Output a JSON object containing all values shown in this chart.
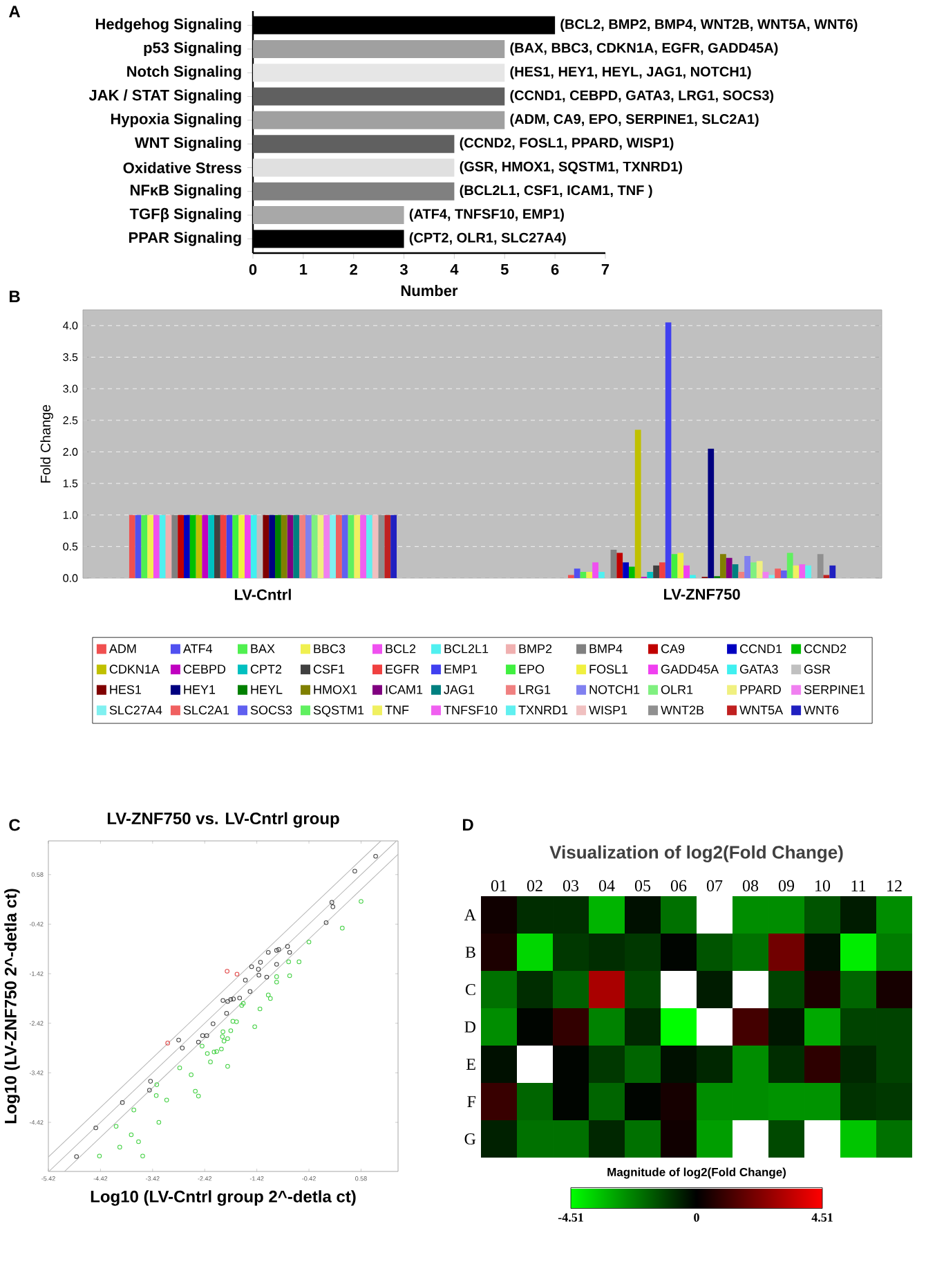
{
  "chart_data": [
    {
      "type": "bar",
      "orientation": "horizontal",
      "annotations": [
        "A"
      ],
      "xlabel": "Number",
      "categories": [
        "Hedgehog Signaling",
        "p53 Signaling",
        "Notch Signaling",
        "JAK / STAT Signaling",
        "Hypoxia Signaling",
        "WNT Signaling",
        "Oxidative Stress",
        "NFκB Signaling",
        "TGFβ Signaling",
        "PPAR Signaling"
      ],
      "values": [
        6,
        5,
        5,
        5,
        5,
        4,
        4,
        4,
        3,
        3
      ],
      "colors": [
        "#000000",
        "#a0a0a0",
        "#e6e6e6",
        "#606060",
        "#a0a0a0",
        "#606060",
        "#e0e0e0",
        "#808080",
        "#a8a8a8",
        "#000000"
      ],
      "value_labels": [
        "(BCL2, BMP2, BMP4, WNT2B, WNT5A, WNT6)",
        "(BAX, BBC3, CDKN1A, EGFR, GADD45A)",
        "(HES1, HEY1, HEYL, JAG1, NOTCH1)",
        "(CCND1, CEBPD, GATA3, LRG1, SOCS3)",
        "(ADM, CA9, EPO, SERPINE1, SLC2A1)",
        "(CCND2, FOSL1, PPARD, WISP1)",
        "(GSR, HMOX1, SQSTM1, TXNRD1)",
        "(BCL2L1, CSF1, ICAM1, TNF )",
        "(ATF4, TNFSF10, EMP1)",
        "(CPT2, OLR1, SLC27A4)"
      ],
      "xlim": [
        0,
        7
      ],
      "xticks": [
        0,
        1,
        2,
        3,
        4,
        5,
        6,
        7
      ]
    },
    {
      "type": "bar",
      "annotations": [
        "B"
      ],
      "ylabel": "Fold Change",
      "categories": [
        "LV-Cntrl",
        "LV-ZNF750"
      ],
      "ylim": [
        0,
        4.25
      ],
      "yticks": [
        {
          "value": 0,
          "label": "0.0"
        },
        {
          "value": 0.5,
          "label": "0.5"
        },
        {
          "value": 1,
          "label": "1.0"
        },
        {
          "value": 1.5,
          "label": "1.5"
        },
        {
          "value": 2,
          "label": "2.0"
        },
        {
          "value": 2.5,
          "label": "2.5"
        },
        {
          "value": 3,
          "label": "3.0"
        },
        {
          "value": 3.5,
          "label": "3.5"
        },
        {
          "value": 4,
          "label": "4.0"
        }
      ],
      "grid": "y",
      "legend": "bottom",
      "series": [
        {
          "name": "ADM",
          "color": "#f05050",
          "values": [
            1.0,
            0.05
          ]
        },
        {
          "name": "ATF4",
          "color": "#5050f0",
          "values": [
            1.0,
            0.15
          ]
        },
        {
          "name": "BAX",
          "color": "#50f050",
          "values": [
            1.0,
            0.1
          ]
        },
        {
          "name": "BBC3",
          "color": "#f0f050",
          "values": [
            1.0,
            0.1
          ]
        },
        {
          "name": "BCL2",
          "color": "#f050f0",
          "values": [
            1.0,
            0.25
          ]
        },
        {
          "name": "BCL2L1",
          "color": "#50f0f0",
          "values": [
            1.0,
            0.1
          ]
        },
        {
          "name": "BMP2",
          "color": "#f0b0b0",
          "values": [
            1.0,
            null
          ]
        },
        {
          "name": "BMP4",
          "color": "#808080",
          "values": [
            1.0,
            0.45
          ]
        },
        {
          "name": "CA9",
          "color": "#c00000",
          "values": [
            1.0,
            0.4
          ]
        },
        {
          "name": "CCND1",
          "color": "#0000c0",
          "values": [
            1.0,
            0.25
          ]
        },
        {
          "name": "CCND2",
          "color": "#00c000",
          "values": [
            1.0,
            0.18
          ]
        },
        {
          "name": "CDKN1A",
          "color": "#c0c000",
          "values": [
            1.0,
            2.35
          ]
        },
        {
          "name": "CEBPD",
          "color": "#c000c0",
          "values": [
            1.0,
            0.02
          ]
        },
        {
          "name": "CPT2",
          "color": "#00c0c0",
          "values": [
            1.0,
            0.1
          ]
        },
        {
          "name": "CSF1",
          "color": "#404040",
          "values": [
            1.0,
            0.2
          ]
        },
        {
          "name": "EGFR",
          "color": "#f04040",
          "values": [
            1.0,
            0.25
          ]
        },
        {
          "name": "EMP1",
          "color": "#4040f0",
          "values": [
            1.0,
            4.05
          ]
        },
        {
          "name": "EPO",
          "color": "#40f040",
          "values": [
            1.0,
            0.38
          ]
        },
        {
          "name": "FOSL1",
          "color": "#f0f040",
          "values": [
            1.0,
            0.4
          ]
        },
        {
          "name": "GADD45A",
          "color": "#f040f0",
          "values": [
            1.0,
            0.2
          ]
        },
        {
          "name": "GATA3",
          "color": "#40f0f0",
          "values": [
            1.0,
            0.05
          ]
        },
        {
          "name": "GSR",
          "color": "#c0c0c0",
          "values": [
            1.0,
            null
          ]
        },
        {
          "name": "HES1",
          "color": "#800000",
          "values": [
            1.0,
            0.02
          ]
        },
        {
          "name": "HEY1",
          "color": "#000080",
          "values": [
            1.0,
            2.05
          ]
        },
        {
          "name": "HEYL",
          "color": "#008000",
          "values": [
            1.0,
            0.03
          ]
        },
        {
          "name": "HMOX1",
          "color": "#808000",
          "values": [
            1.0,
            0.38
          ]
        },
        {
          "name": "ICAM1",
          "color": "#800080",
          "values": [
            1.0,
            0.32
          ]
        },
        {
          "name": "JAG1",
          "color": "#008080",
          "values": [
            1.0,
            0.22
          ]
        },
        {
          "name": "LRG1",
          "color": "#f08080",
          "values": [
            1.0,
            0.1
          ]
        },
        {
          "name": "NOTCH1",
          "color": "#8080f0",
          "values": [
            1.0,
            0.35
          ]
        },
        {
          "name": "OLR1",
          "color": "#80f080",
          "values": [
            1.0,
            0.25
          ]
        },
        {
          "name": "PPARD",
          "color": "#f0f080",
          "values": [
            1.0,
            0.27
          ]
        },
        {
          "name": "SERPINE1",
          "color": "#f080f0",
          "values": [
            1.0,
            0.1
          ]
        },
        {
          "name": "SLC27A4",
          "color": "#80f0f0",
          "values": [
            1.0,
            0.05
          ]
        },
        {
          "name": "SLC2A1",
          "color": "#f06060",
          "values": [
            1.0,
            0.15
          ]
        },
        {
          "name": "SOCS3",
          "color": "#6060f0",
          "values": [
            1.0,
            0.12
          ]
        },
        {
          "name": "SQSTM1",
          "color": "#60f060",
          "values": [
            1.0,
            0.4
          ]
        },
        {
          "name": "TNF",
          "color": "#f0f060",
          "values": [
            1.0,
            0.2
          ]
        },
        {
          "name": "TNFSF10",
          "color": "#f060f0",
          "values": [
            1.0,
            0.22
          ]
        },
        {
          "name": "TXNRD1",
          "color": "#60f0f0",
          "values": [
            1.0,
            0.2
          ]
        },
        {
          "name": "WISP1",
          "color": "#f0c0c0",
          "values": [
            1.0,
            null
          ]
        },
        {
          "name": "WNT2B",
          "color": "#909090",
          "values": [
            1.0,
            0.38
          ]
        },
        {
          "name": "WNT5A",
          "color": "#c02020",
          "values": [
            1.0,
            0.05
          ]
        },
        {
          "name": "WNT6",
          "color": "#2020c0",
          "values": [
            1.0,
            0.2
          ]
        }
      ]
    },
    {
      "type": "scatter",
      "annotations": [
        "C"
      ],
      "title": "LV-ZNF750 vs. LV-Cntrl group",
      "xlabel": "Log10 (LV-Cntrl group 2^-detla ct)",
      "ylabel": "Log10 (LV-ZNF750 2^-detla ct)",
      "xlim": [
        -5.42,
        1.29
      ],
      "ylim": [
        -5.41,
        1.26
      ],
      "xticks": [
        -5.42,
        -4.42,
        -3.42,
        -2.42,
        -1.42,
        -0.42,
        0.58
      ],
      "yticks": [
        -4.42,
        -3.42,
        -2.42,
        -1.42,
        -0.42,
        0.58
      ],
      "marker": "circle",
      "series": [
        {
          "type": "line",
          "marker": "none",
          "color": "#b4b4b4",
          "x": [
            -5.42,
            0.96
          ],
          "values": [
            -5.12,
            1.26
          ]
        },
        {
          "type": "line",
          "marker": "none",
          "color": "#b4b4b4",
          "x": [
            -5.41,
            1.26
          ],
          "values": [
            -5.41,
            1.26
          ]
        },
        {
          "type": "line",
          "marker": "none",
          "color": "#b4b4b4",
          "x": [
            -5.11,
            1.29
          ],
          "values": [
            -5.41,
            0.99
          ]
        },
        {
          "color": "#404040",
          "x": [
            0.86,
            0.46,
            0.02,
            0.04,
            -0.09,
            -0.83,
            -1.0,
            -1.04,
            -1.2,
            -0.79,
            -1.35,
            -1.52,
            -1.04,
            -1.39,
            -1.38,
            -1.23,
            -1.64,
            -1.55,
            -2.07,
            -1.98,
            -1.92,
            -1.87,
            -1.75,
            -2.0,
            -2.26,
            -2.46,
            -2.38,
            -2.54,
            -2.92,
            -2.85,
            -3.46,
            -3.48,
            -4.0,
            -4.51,
            -4.88
          ],
          "values": [
            0.95,
            0.65,
            0.02,
            -0.07,
            -0.39,
            -0.87,
            -0.93,
            -0.95,
            -0.99,
            -0.99,
            -1.19,
            -1.28,
            -1.23,
            -1.33,
            -1.45,
            -1.49,
            -1.55,
            -1.78,
            -1.96,
            -1.98,
            -1.94,
            -1.93,
            -1.91,
            -2.22,
            -2.43,
            -2.67,
            -2.67,
            -2.8,
            -2.76,
            -2.92,
            -3.59,
            -3.77,
            -4.02,
            -4.53,
            -5.11
          ]
        },
        {
          "color": "#e04040",
          "x": [
            -1.99,
            -1.8,
            -3.13
          ],
          "values": [
            -1.37,
            -1.43,
            -2.82
          ]
        },
        {
          "color": "#40d040",
          "x": [
            0.58,
            0.22,
            -0.42,
            -0.61,
            -0.81,
            -1.04,
            -1.04,
            -0.79,
            -1.2,
            -1.16,
            -1.36,
            -1.68,
            -1.71,
            -1.81,
            -1.88,
            -1.92,
            -2.07,
            -1.98,
            -2.08,
            -2.05,
            -1.46,
            -2.1,
            -2.19,
            -2.24,
            -2.37,
            -2.31,
            -2.47,
            -1.98,
            -2.9,
            -2.68,
            -2.6,
            -2.54,
            -3.34,
            -3.35,
            -3.15,
            -3.78,
            -3.3,
            -4.12,
            -3.83,
            -3.69,
            -4.05,
            -4.44,
            -3.61
          ],
          "values": [
            0.04,
            -0.5,
            -0.78,
            -1.18,
            -1.18,
            -1.48,
            -1.59,
            -1.46,
            -1.85,
            -1.92,
            -2.13,
            -2.02,
            -2.06,
            -2.39,
            -2.38,
            -2.57,
            -2.59,
            -2.73,
            -2.69,
            -2.78,
            -2.49,
            -2.94,
            -2.99,
            -3.0,
            -3.03,
            -3.2,
            -2.88,
            -3.29,
            -3.32,
            -3.46,
            -3.79,
            -3.89,
            -3.66,
            -3.88,
            -3.97,
            -4.17,
            -4.42,
            -4.5,
            -4.67,
            -4.81,
            -4.92,
            -5.1,
            -5.1
          ]
        }
      ]
    },
    {
      "type": "heatmap",
      "annotations": [
        "D"
      ],
      "title": "Visualization of log2(Fold Change)",
      "clabel": "Magnitude of log2(Fold Change)",
      "categories": [
        "01",
        "02",
        "03",
        "04",
        "05",
        "06",
        "07",
        "08",
        "09",
        "10",
        "11",
        "12"
      ],
      "y_categories": [
        "A",
        "B",
        "C",
        "D",
        "E",
        "F",
        "G"
      ],
      "clim": [
        -4.51,
        4.51
      ],
      "cticks": [
        -4.51,
        0,
        4.51
      ],
      "cells": [
        [
          0.3,
          -0.8,
          -0.8,
          -3.2,
          -0.3,
          -2.0,
          null,
          -2.5,
          -2.5,
          -1.5,
          -0.5,
          -2.5
        ],
        [
          0.5,
          -3.8,
          -1.0,
          -0.8,
          -1.0,
          -0.1,
          -1.5,
          -2.0,
          2.0,
          -0.3,
          -4.2,
          -2.2
        ],
        [
          -2.0,
          -0.8,
          -1.7,
          3.0,
          -1.3,
          null,
          -0.5,
          null,
          -1.2,
          0.5,
          -1.8,
          0.4
        ],
        [
          -2.5,
          -0.1,
          0.9,
          -2.3,
          -0.7,
          -4.5,
          null,
          1.2,
          -0.4,
          -3.0,
          -1.2,
          -1.2
        ],
        [
          -0.3,
          null,
          -0.1,
          -1.0,
          -1.8,
          -0.3,
          -0.7,
          -2.5,
          -0.8,
          0.8,
          -0.7,
          -1.2
        ],
        [
          1.0,
          -1.8,
          -0.1,
          -1.8,
          -0.1,
          0.4,
          -2.5,
          -2.5,
          -2.6,
          -2.6,
          -0.9,
          -1.0
        ],
        [
          -0.6,
          -2.0,
          -2.0,
          -0.7,
          -2.0,
          0.3,
          -2.8,
          null,
          -1.3,
          null,
          -3.5,
          -2.0
        ]
      ]
    }
  ]
}
